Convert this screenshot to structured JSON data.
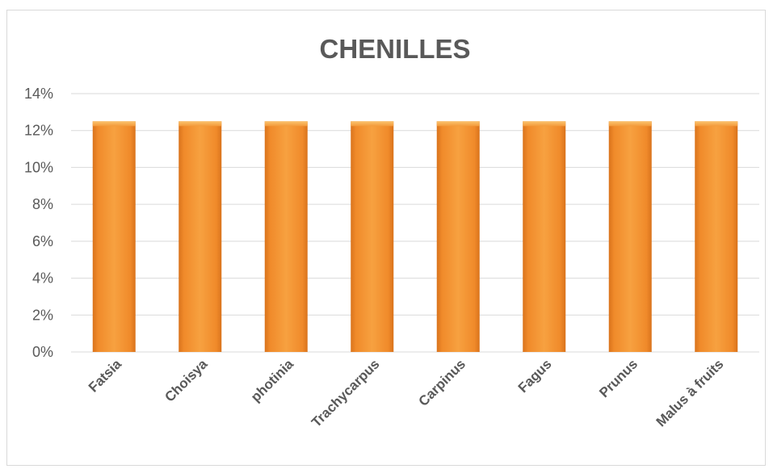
{
  "chart_data": {
    "type": "bar",
    "title": "CHENILLES",
    "xlabel": "",
    "ylabel": "",
    "categories": [
      "Fatsia",
      "Choisya",
      "photinia",
      "Trachycarpus",
      "Carpinus",
      "Fagus",
      "Prunus",
      "Malus à fruits"
    ],
    "values": [
      0.125,
      0.125,
      0.125,
      0.125,
      0.125,
      0.125,
      0.125,
      0.125
    ],
    "ylim": [
      0,
      0.14
    ],
    "yticks": [
      "0%",
      "2%",
      "4%",
      "6%",
      "8%",
      "10%",
      "12%",
      "14%"
    ],
    "grid": true,
    "legend": "none",
    "bar_color": "#f39a3a",
    "bar_color_dark": "#d9731c"
  }
}
